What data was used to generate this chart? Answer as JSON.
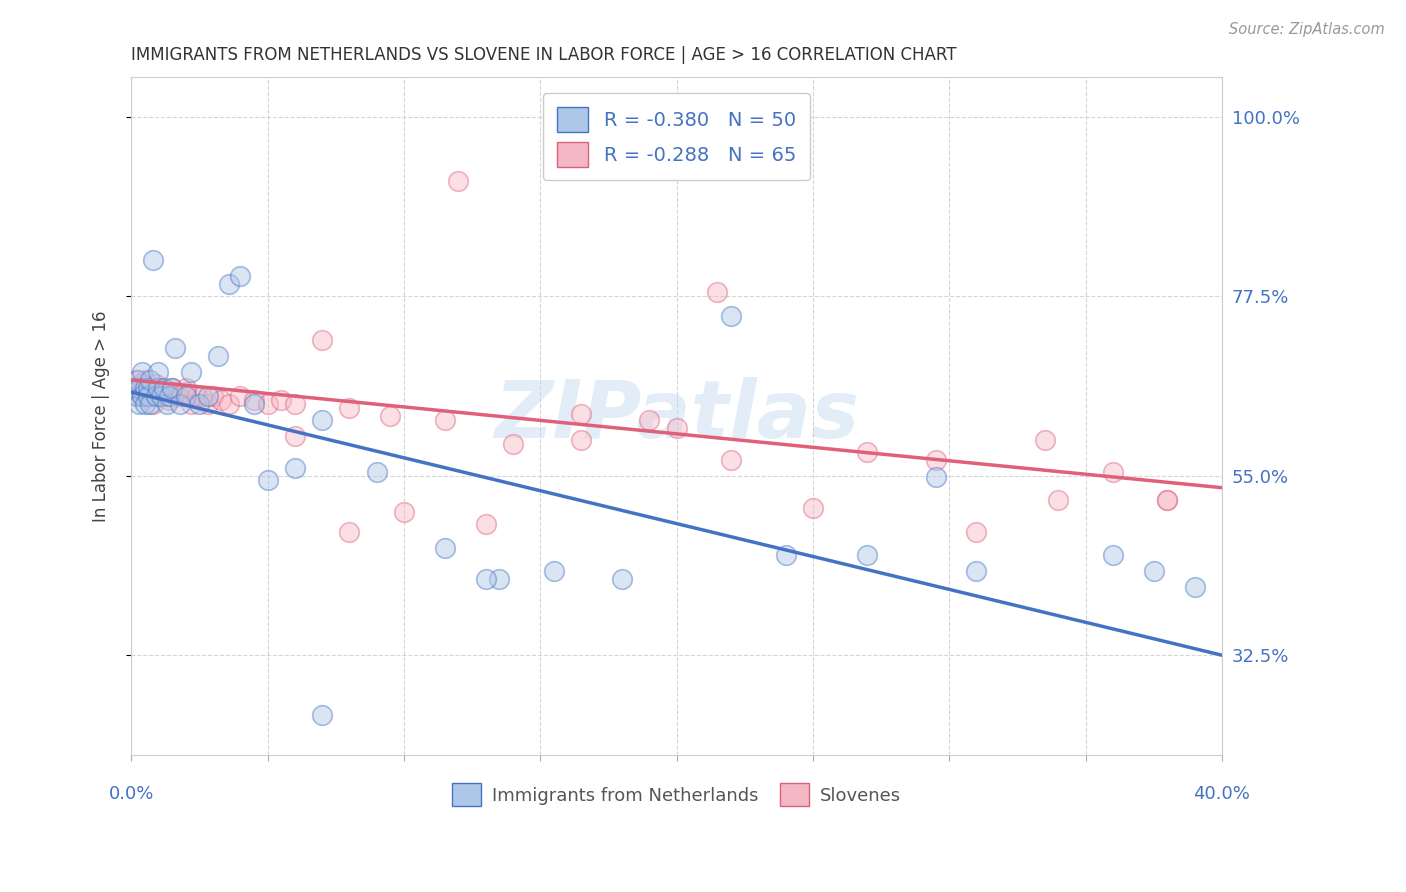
{
  "title": "IMMIGRANTS FROM NETHERLANDS VS SLOVENE IN LABOR FORCE | AGE > 16 CORRELATION CHART",
  "source": "Source: ZipAtlas.com",
  "ylabel_label": "In Labor Force | Age > 16",
  "xmin": 0.0,
  "xmax": 0.4,
  "ymin": 0.2,
  "ymax": 1.05,
  "yticks": [
    0.325,
    0.55,
    0.775,
    1.0
  ],
  "ytick_labels": [
    "32.5%",
    "55.0%",
    "77.5%",
    "100.0%"
  ],
  "blue_fill": "#aec6e8",
  "blue_edge": "#4472c4",
  "pink_fill": "#f4b8c5",
  "pink_edge": "#e0607a",
  "legend_blue_label": "R = -0.380   N = 50",
  "legend_pink_label": "R = -0.288   N = 65",
  "legend_bottom_blue": "Immigrants from Netherlands",
  "legend_bottom_pink": "Slovenes",
  "watermark": "ZIPatlas",
  "blue_line_x": [
    0.0,
    0.4
  ],
  "blue_line_y": [
    0.655,
    0.325
  ],
  "pink_line_x": [
    0.0,
    0.4
  ],
  "pink_line_y": [
    0.67,
    0.535
  ],
  "blue_x": [
    0.001,
    0.002,
    0.002,
    0.003,
    0.003,
    0.004,
    0.004,
    0.005,
    0.005,
    0.006,
    0.006,
    0.007,
    0.007,
    0.008,
    0.009,
    0.01,
    0.01,
    0.011,
    0.012,
    0.013,
    0.014,
    0.015,
    0.016,
    0.018,
    0.02,
    0.022,
    0.025,
    0.028,
    0.032,
    0.036,
    0.04,
    0.045,
    0.05,
    0.06,
    0.07,
    0.09,
    0.115,
    0.135,
    0.155,
    0.18,
    0.22,
    0.27,
    0.295,
    0.31,
    0.36,
    0.375,
    0.39,
    0.07,
    0.13,
    0.24
  ],
  "blue_y": [
    0.66,
    0.65,
    0.67,
    0.64,
    0.66,
    0.65,
    0.68,
    0.66,
    0.64,
    0.66,
    0.65,
    0.67,
    0.64,
    0.82,
    0.65,
    0.66,
    0.68,
    0.65,
    0.66,
    0.64,
    0.65,
    0.66,
    0.71,
    0.64,
    0.65,
    0.68,
    0.64,
    0.65,
    0.7,
    0.79,
    0.8,
    0.64,
    0.545,
    0.56,
    0.25,
    0.555,
    0.46,
    0.42,
    0.43,
    0.42,
    0.75,
    0.45,
    0.548,
    0.43,
    0.45,
    0.43,
    0.41,
    0.62,
    0.42,
    0.45
  ],
  "pink_x": [
    0.001,
    0.002,
    0.002,
    0.003,
    0.003,
    0.004,
    0.004,
    0.005,
    0.005,
    0.006,
    0.006,
    0.007,
    0.007,
    0.008,
    0.008,
    0.009,
    0.01,
    0.01,
    0.011,
    0.012,
    0.013,
    0.014,
    0.015,
    0.016,
    0.017,
    0.018,
    0.02,
    0.022,
    0.024,
    0.026,
    0.028,
    0.03,
    0.033,
    0.036,
    0.04,
    0.045,
    0.05,
    0.055,
    0.06,
    0.07,
    0.08,
    0.095,
    0.115,
    0.14,
    0.165,
    0.19,
    0.215,
    0.25,
    0.27,
    0.295,
    0.31,
    0.335,
    0.36,
    0.38,
    0.12,
    0.165,
    0.06,
    0.08,
    0.1,
    0.13,
    0.2,
    0.22,
    0.34,
    0.38,
    0.02
  ],
  "pink_y": [
    0.66,
    0.65,
    0.67,
    0.66,
    0.655,
    0.665,
    0.66,
    0.65,
    0.67,
    0.66,
    0.65,
    0.66,
    0.65,
    0.66,
    0.64,
    0.665,
    0.66,
    0.65,
    0.66,
    0.655,
    0.65,
    0.645,
    0.66,
    0.655,
    0.65,
    0.65,
    0.655,
    0.64,
    0.65,
    0.65,
    0.64,
    0.65,
    0.645,
    0.64,
    0.65,
    0.645,
    0.64,
    0.645,
    0.64,
    0.72,
    0.635,
    0.625,
    0.62,
    0.59,
    0.595,
    0.62,
    0.78,
    0.51,
    0.58,
    0.57,
    0.48,
    0.595,
    0.555,
    0.52,
    0.92,
    0.628,
    0.6,
    0.48,
    0.505,
    0.49,
    0.61,
    0.57,
    0.52,
    0.52,
    0.66
  ]
}
